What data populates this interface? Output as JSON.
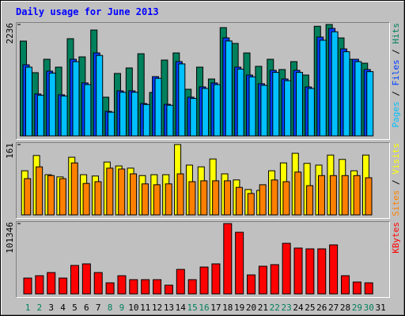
{
  "chart_data": [
    {
      "type": "bar",
      "title": "Daily usage for June 2013",
      "title_color": "#0000ff",
      "legend_separator": " / ",
      "ylim": [
        0,
        2236
      ],
      "yticks": [
        2236
      ],
      "series": [
        {
          "name": "Hits",
          "color": "#00805c",
          "values": [
            1903,
            1269,
            1538,
            1380,
            1951,
            1586,
            2125,
            777,
            1253,
            1364,
            1649,
            872,
            1522,
            1665,
            936,
            1380,
            1142,
            2173,
            1856,
            1665,
            1396,
            1538,
            1332,
            1491,
            1221,
            2200,
            2236,
            1966,
            1538,
            1459,
            null
          ]
        },
        {
          "name": "Files",
          "color": "#0040ff",
          "values": [
            1427,
            841,
            1300,
            825,
            1538,
            1063,
            1665,
            492,
            904,
            904,
            650,
            1190,
            634,
            1491,
            777,
            983,
            1063,
            1967,
            1380,
            1221,
            1047,
            1316,
            1142,
            1316,
            983,
            1983,
            2157,
            1745,
            1538,
            1332,
            null
          ]
        },
        {
          "name": "Pages",
          "color": "#00c0ff",
          "values": [
            1380,
            815,
            1260,
            800,
            1490,
            1030,
            1615,
            475,
            875,
            875,
            630,
            1155,
            615,
            1445,
            752,
            952,
            1030,
            1905,
            1340,
            1185,
            1015,
            1275,
            1108,
            1275,
            952,
            1920,
            2090,
            1690,
            1490,
            1290,
            null
          ]
        }
      ]
    },
    {
      "type": "bar",
      "legend_separator": " / ",
      "ylim": [
        0,
        161
      ],
      "yticks": [
        161
      ],
      "series": [
        {
          "name": "Visits",
          "color": "#ffff00",
          "values": [
            101,
            136,
            92,
            87,
            132,
            92,
            89,
            121,
            112,
            107,
            90,
            92,
            92,
            161,
            114,
            110,
            128,
            94,
            80,
            58,
            56,
            101,
            119,
            141,
            118,
            114,
            137,
            127,
            101,
            137,
            null
          ]
        },
        {
          "name": "Sites",
          "color": "#ff8000",
          "values": [
            83,
            110,
            90,
            83,
            119,
            72,
            76,
            107,
            105,
            94,
            71,
            69,
            71,
            94,
            76,
            78,
            78,
            78,
            63,
            49,
            69,
            80,
            76,
            98,
            67,
            90,
            90,
            90,
            90,
            85,
            null
          ]
        }
      ]
    },
    {
      "type": "bar",
      "ylim": [
        0,
        101346
      ],
      "yticks": [
        101346
      ],
      "categories": [
        "1",
        "2",
        "3",
        "4",
        "5",
        "6",
        "7",
        "8",
        "9",
        "10",
        "11",
        "12",
        "13",
        "14",
        "15",
        "16",
        "17",
        "18",
        "19",
        "20",
        "21",
        "22",
        "23",
        "24",
        "25",
        "26",
        "27",
        "28",
        "29",
        "30",
        "31"
      ],
      "category_colors": [
        "#00805c",
        "#00805c",
        "#000000",
        "#000000",
        "#000000",
        "#000000",
        "#000000",
        "#00805c",
        "#00805c",
        "#000000",
        "#000000",
        "#000000",
        "#000000",
        "#000000",
        "#00805c",
        "#00805c",
        "#000000",
        "#000000",
        "#000000",
        "#000000",
        "#000000",
        "#00805c",
        "#00805c",
        "#000000",
        "#000000",
        "#000000",
        "#000000",
        "#000000",
        "#00805c",
        "#00805c",
        "#000000"
      ],
      "series": [
        {
          "name": "KBytes",
          "color": "#ff0000",
          "values": [
            22780,
            26200,
            30750,
            22780,
            41000,
            43280,
            30750,
            15950,
            26200,
            20500,
            20500,
            20500,
            12530,
            35300,
            20500,
            38700,
            43280,
            101346,
            88800,
            27340,
            39860,
            42140,
            72900,
            66060,
            64920,
            64920,
            70620,
            26200,
            17090,
            15950,
            null
          ]
        }
      ]
    }
  ]
}
